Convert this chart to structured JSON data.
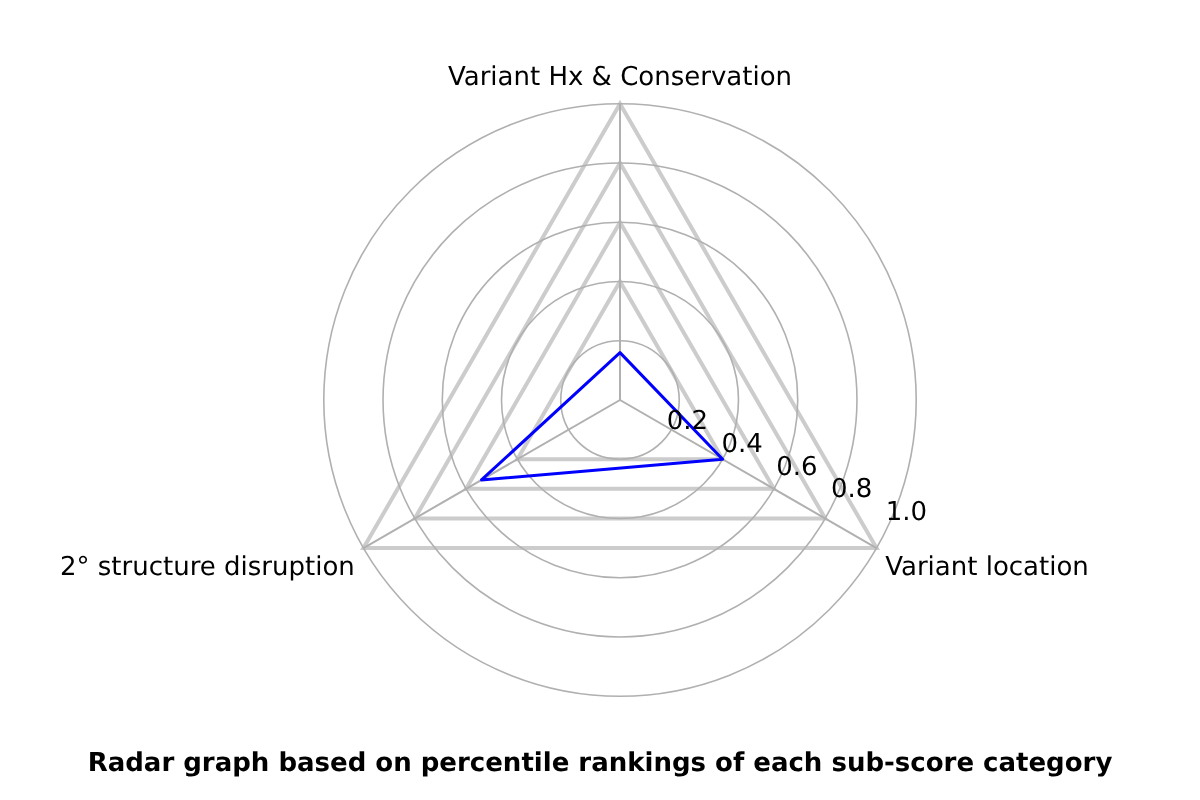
{
  "chart_data": {
    "type": "radar",
    "title": "Radar graph based on percentile rankings of each sub-score category",
    "categories": [
      "Variant Hx & Conservation",
      "Variant location",
      "2° structure disruption"
    ],
    "series": [
      {
        "color": "#0000ff",
        "values": [
          0.16,
          0.4,
          0.54
        ]
      }
    ],
    "ylim": [
      0,
      1.0
    ],
    "yticks": [
      {
        "value": 0.2,
        "label": "0.2"
      },
      {
        "value": 0.4,
        "label": "0.4"
      },
      {
        "value": 0.6,
        "label": "0.6"
      },
      {
        "value": 0.8,
        "label": "0.8"
      },
      {
        "value": 1.0,
        "label": "1.0"
      }
    ],
    "grid": true,
    "legend": false,
    "marker": "none",
    "line_style": "solid"
  }
}
